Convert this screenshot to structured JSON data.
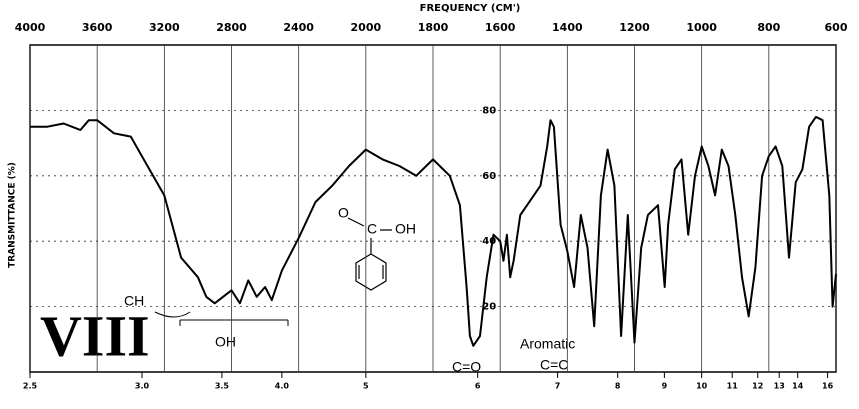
{
  "chart_data": {
    "type": "line",
    "x_label": "FREQUENCY (CM')",
    "y_label": "TRANSMITTANCE (%)",
    "xlim": [
      4000,
      600
    ],
    "xticks": [
      4000,
      3600,
      3200,
      2800,
      2400,
      2000,
      1800,
      1600,
      1400,
      1200,
      1000,
      800,
      600
    ],
    "x2ticks": [
      {
        "value": 4000,
        "label": "2.5"
      },
      {
        "value": 3333,
        "label": "3.0"
      },
      {
        "value": 2857,
        "label": "3.5"
      },
      {
        "value": 2500,
        "label": "4.0"
      },
      {
        "value": 2000,
        "label": "5"
      },
      {
        "value": 1667,
        "label": "6"
      },
      {
        "value": 1429,
        "label": "7"
      },
      {
        "value": 1250,
        "label": "8"
      },
      {
        "value": 1111,
        "label": "9"
      },
      {
        "value": 1000,
        "label": "10"
      },
      {
        "value": 909,
        "label": "11"
      },
      {
        "value": 833,
        "label": "12"
      },
      {
        "value": 769,
        "label": "13"
      },
      {
        "value": 714,
        "label": "14"
      },
      {
        "value": 625,
        "label": "16"
      }
    ],
    "ylim": [
      0,
      100
    ],
    "yticks": [
      20,
      40,
      60,
      80
    ],
    "grid": true,
    "color": "#000000",
    "x": [
      4000,
      3900,
      3800,
      3700,
      3650,
      3600,
      3500,
      3400,
      3300,
      3200,
      3100,
      3000,
      2950,
      2900,
      2850,
      2800,
      2750,
      2700,
      2650,
      2600,
      2560,
      2500,
      2400,
      2300,
      2200,
      2100,
      2000,
      1950,
      1900,
      1850,
      1800,
      1750,
      1720,
      1700,
      1690,
      1680,
      1660,
      1640,
      1620,
      1600,
      1590,
      1580,
      1570,
      1560,
      1540,
      1500,
      1480,
      1460,
      1450,
      1440,
      1420,
      1400,
      1380,
      1360,
      1340,
      1320,
      1300,
      1280,
      1260,
      1240,
      1220,
      1200,
      1180,
      1160,
      1130,
      1110,
      1100,
      1080,
      1060,
      1040,
      1020,
      1000,
      980,
      960,
      940,
      920,
      900,
      880,
      860,
      840,
      820,
      800,
      780,
      760,
      740,
      720,
      700,
      680,
      660,
      640,
      620,
      610,
      600
    ],
    "values": [
      75,
      75,
      76,
      74,
      77,
      77,
      73,
      72,
      63,
      54,
      35,
      29,
      23,
      21,
      23,
      25,
      21,
      28,
      23,
      26,
      22,
      31,
      41,
      52,
      57,
      63,
      68,
      65,
      63,
      60,
      65,
      60,
      51,
      26,
      11,
      8,
      11,
      29,
      42,
      40,
      34,
      42,
      29,
      34,
      48,
      54,
      57,
      69,
      77,
      75,
      45,
      37,
      26,
      48,
      38,
      14,
      54,
      68,
      57,
      11,
      48,
      9,
      38,
      48,
      51,
      26,
      45,
      62,
      65,
      42,
      60,
      69,
      63,
      54,
      68,
      63,
      48,
      29,
      17,
      32,
      60,
      66,
      69,
      63,
      35,
      58,
      62,
      75,
      78,
      77,
      54,
      20,
      30
    ],
    "annotations": {
      "ch": "CH",
      "oh": "OH",
      "co": "C=O",
      "aromatic": "Aromatic",
      "cc": "C=C",
      "numeral": "VIII"
    },
    "structure": {
      "oxygen": "O",
      "carbon": "C",
      "hydroxyl": "OH"
    }
  }
}
